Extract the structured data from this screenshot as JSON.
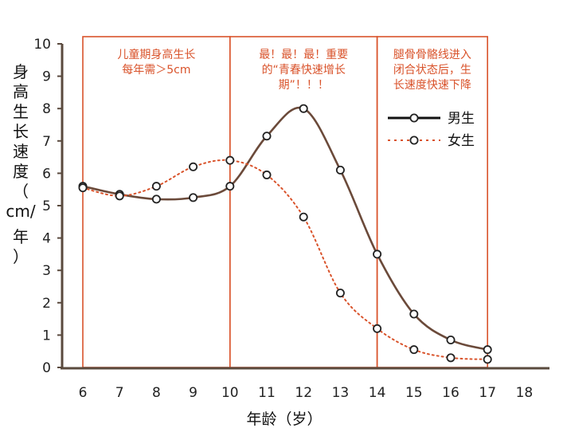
{
  "chart_data": {
    "type": "line",
    "xlabel": "年龄（岁）",
    "ylabel": "身高生长速度（cm/年）",
    "xlim": [
      6,
      18
    ],
    "ylim": [
      0,
      10
    ],
    "x_ticks": [
      "6",
      "7",
      "8",
      "9",
      "10",
      "11",
      "12",
      "13",
      "14",
      "15",
      "16",
      "17",
      "18"
    ],
    "y_ticks": [
      "0",
      "1",
      "2",
      "3",
      "4",
      "5",
      "6",
      "7",
      "8",
      "9",
      "10"
    ],
    "series": [
      {
        "name": "男生",
        "style": "solid",
        "color": "#6b4a3a",
        "x": [
          6,
          7,
          8,
          9,
          10,
          11,
          12,
          13,
          14,
          15,
          16,
          17
        ],
        "y": [
          5.6,
          5.35,
          5.2,
          5.25,
          5.6,
          7.15,
          8.0,
          6.1,
          3.5,
          1.65,
          0.85,
          0.55
        ]
      },
      {
        "name": "女生",
        "style": "dotted",
        "color": "#d9532b",
        "x": [
          6,
          7,
          8,
          9,
          10,
          11,
          12,
          13,
          14,
          15,
          16,
          17
        ],
        "y": [
          5.55,
          5.3,
          5.6,
          6.2,
          6.4,
          5.95,
          4.65,
          2.3,
          1.2,
          0.55,
          0.3,
          0.25
        ]
      }
    ],
    "regions": [
      {
        "x_start": 6,
        "x_end": 10,
        "lines": [
          "儿童期身高生长",
          "每年需＞5cm"
        ]
      },
      {
        "x_start": 10,
        "x_end": 14,
        "lines": [
          "最！最！最！重要",
          "的“青春快速增长",
          "期”！！！"
        ]
      },
      {
        "x_start": 14,
        "x_end": 17,
        "lines": [
          "腿骨骨骼线进入",
          "闭合状态后，生",
          "长速度快速下降"
        ]
      }
    ],
    "legend_position": "top-right",
    "region_color": "#d9532b",
    "axis_color": "#5a4a3e"
  }
}
